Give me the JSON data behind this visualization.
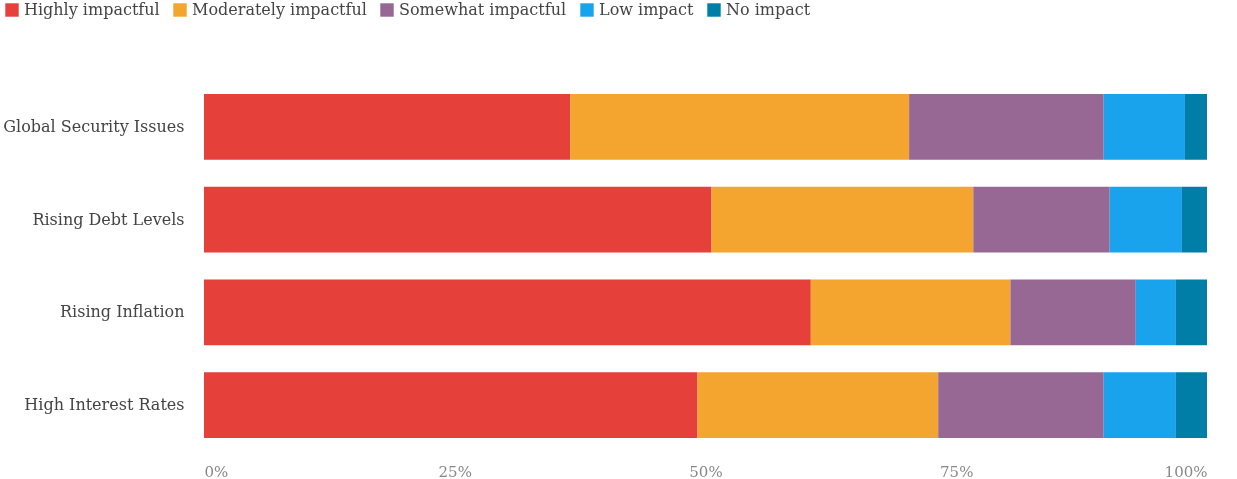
{
  "chart_data": {
    "type": "bar",
    "orientation": "horizontal",
    "stacked": true,
    "legend": "top left",
    "categories": [
      "Global Security Issues",
      "Rising Debt Levels",
      "Rising Inflation",
      "High Interest Rates"
    ],
    "series": [
      {
        "name": "Highly impactful",
        "color": "#e5403a",
        "values": [
          36.5,
          50.6,
          60.5,
          49.2
        ]
      },
      {
        "name": "Moderately impactful",
        "color": "#f4a530",
        "values": [
          33.8,
          26.1,
          19.9,
          24.0
        ]
      },
      {
        "name": "Somewhat impactful",
        "color": "#976894",
        "values": [
          19.4,
          13.6,
          12.5,
          16.5
        ]
      },
      {
        "name": "Low impact",
        "color": "#19a3ec",
        "values": [
          8.1,
          7.2,
          4.0,
          7.2
        ]
      },
      {
        "name": "No impact",
        "color": "#007ea7",
        "values": [
          2.2,
          2.5,
          3.1,
          3.1
        ]
      }
    ],
    "xlim": [
      0,
      100
    ],
    "xticks": [
      {
        "value": 0,
        "label": "0%"
      },
      {
        "value": 25,
        "label": "25%"
      },
      {
        "value": 50,
        "label": "50%"
      },
      {
        "value": 75,
        "label": "75%"
      },
      {
        "value": 100,
        "label": "100%"
      }
    ]
  }
}
